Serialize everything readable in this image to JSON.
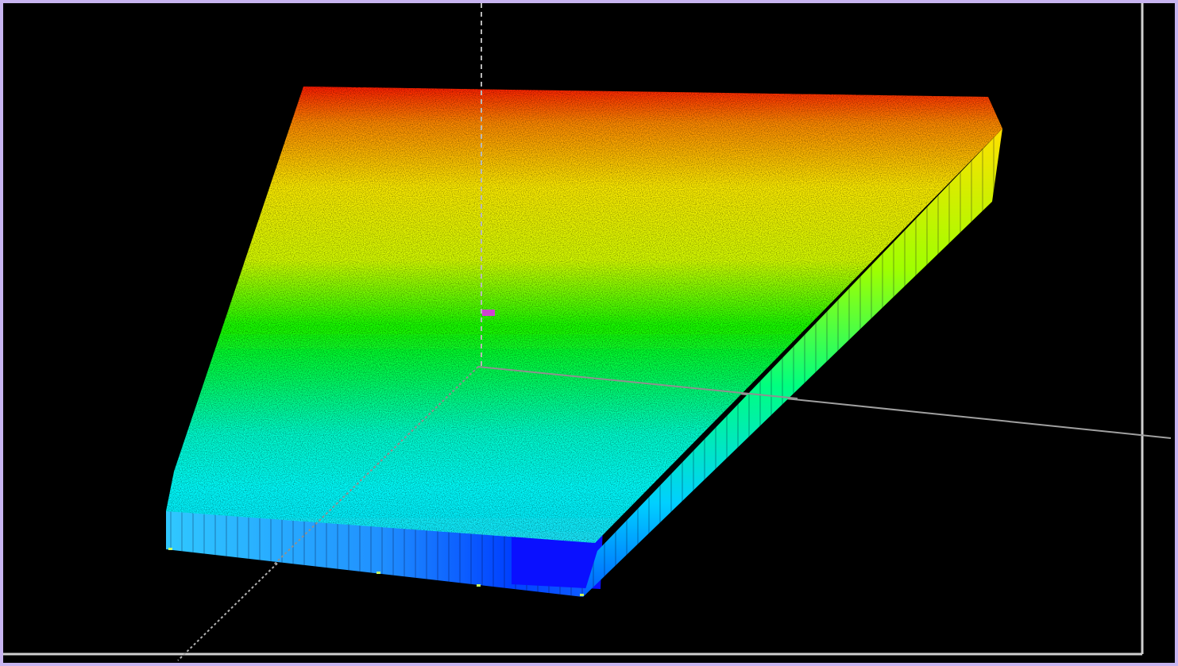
{
  "window": {
    "frame_color": "#c8b4f0",
    "background": "#000000"
  },
  "scene": {
    "type": "3d-point-cloud",
    "object": "slab",
    "colormap": [
      "#0000ff",
      "#00ffff",
      "#00ff00",
      "#ffff00",
      "#ff0000"
    ],
    "axis_color": "#9a9a9a",
    "frame_line_color": "#d0d0d0",
    "center_marker_color": "#d040d0"
  }
}
